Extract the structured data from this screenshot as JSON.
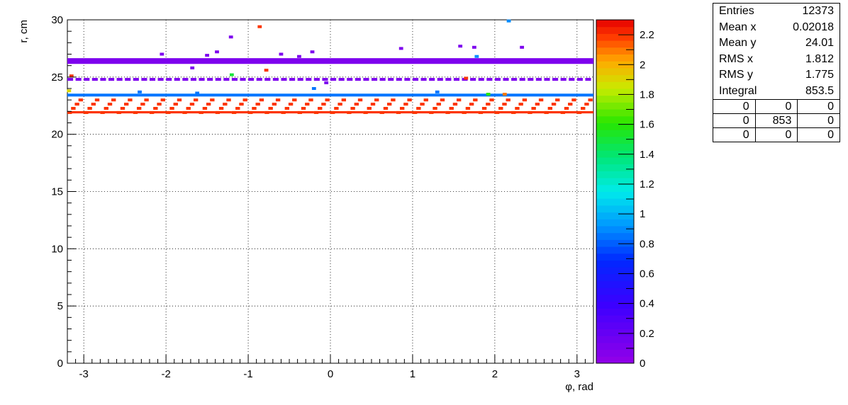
{
  "chart_data": {
    "type": "heatmap",
    "title": "",
    "xlabel": "φ, rad",
    "ylabel": "r, cm",
    "xlim": [
      -3.2,
      3.2
    ],
    "ylim": [
      0,
      30
    ],
    "x_ticks": [
      -3,
      -2,
      -1,
      0,
      1,
      2,
      3
    ],
    "y_ticks": [
      0,
      5,
      10,
      15,
      20,
      25,
      30
    ],
    "z_range": [
      0,
      2.3
    ],
    "z_ticks": [
      "0",
      "0.2",
      "0.4",
      "0.6",
      "0.8",
      "1",
      "1.2",
      "1.4",
      "1.6",
      "1.8",
      "2",
      "2.2"
    ],
    "z_tick_values": [
      0,
      0.2,
      0.4,
      0.6,
      0.8,
      1,
      1.2,
      1.4,
      1.6,
      1.8,
      2,
      2.2
    ],
    "grid": true,
    "palette": "rainbow (violet→blue→cyan→green→yellow→red)",
    "bands": [
      {
        "r": 26.4,
        "phi_range": [
          -3.2,
          3.2
        ],
        "z": 0.1
      },
      {
        "r": 23.3,
        "phi_range": [
          -3.2,
          3.2
        ],
        "z": 0.85
      },
      {
        "r": 24.8,
        "phi_range": [
          -3.2,
          3.2
        ],
        "z": 0.1,
        "dashed": true
      }
    ],
    "sawtooth": {
      "r_range": [
        21.9,
        23.0
      ],
      "period_rad": 0.2,
      "z": 2.2
    },
    "scatter_cells": [
      {
        "phi": -0.86,
        "r": 29.4,
        "z": 2.2
      },
      {
        "phi": 2.17,
        "r": 29.9,
        "z": 0.9
      },
      {
        "phi": -3.15,
        "r": 25.1,
        "z": 2.2
      },
      {
        "phi": -3.18,
        "r": 23.8,
        "z": 1.9
      },
      {
        "phi": -0.78,
        "r": 25.6,
        "z": 2.2
      },
      {
        "phi": -1.2,
        "r": 25.2,
        "z": 1.5
      },
      {
        "phi": 1.65,
        "r": 24.9,
        "z": 2.2
      },
      {
        "phi": 1.92,
        "r": 23.5,
        "z": 1.6
      },
      {
        "phi": 2.12,
        "r": 23.5,
        "z": 2.1
      },
      {
        "phi": -0.05,
        "r": 24.5,
        "z": 0.1
      },
      {
        "phi": -1.5,
        "r": 26.9,
        "z": 0.1
      },
      {
        "phi": -1.38,
        "r": 27.2,
        "z": 0.1
      },
      {
        "phi": -1.21,
        "r": 28.5,
        "z": 0.1
      },
      {
        "phi": -0.22,
        "r": 27.2,
        "z": 0.1
      },
      {
        "phi": 0.86,
        "r": 27.5,
        "z": 0.1
      },
      {
        "phi": 1.58,
        "r": 27.7,
        "z": 0.1
      },
      {
        "phi": 1.75,
        "r": 27.6,
        "z": 0.1
      },
      {
        "phi": 2.33,
        "r": 27.6,
        "z": 0.1
      },
      {
        "phi": 1.78,
        "r": 26.8,
        "z": 0.9
      },
      {
        "phi": -1.68,
        "r": 25.8,
        "z": 0.1
      },
      {
        "phi": -2.05,
        "r": 27.0,
        "z": 0.1
      },
      {
        "phi": -0.6,
        "r": 27.0,
        "z": 0.1
      },
      {
        "phi": -0.38,
        "r": 26.8,
        "z": 0.1
      },
      {
        "phi": 1.3,
        "r": 23.7,
        "z": 0.85
      },
      {
        "phi": -2.32,
        "r": 23.7,
        "z": 0.85
      },
      {
        "phi": -1.62,
        "r": 23.6,
        "z": 0.85
      },
      {
        "phi": -0.2,
        "r": 24.0,
        "z": 0.85
      }
    ]
  },
  "stats": {
    "rows": [
      {
        "label": "Entries",
        "value": "12373"
      },
      {
        "label": "Mean x",
        "value": "0.02018"
      },
      {
        "label": "Mean y",
        "value": "24.01"
      },
      {
        "label": "RMS x",
        "value": "1.812"
      },
      {
        "label": "RMS y",
        "value": "1.775"
      },
      {
        "label": "Integral",
        "value": "853.5"
      }
    ],
    "grid": [
      [
        "0",
        "0",
        "0"
      ],
      [
        "0",
        "853",
        "0"
      ],
      [
        "0",
        "0",
        "0"
      ]
    ]
  }
}
